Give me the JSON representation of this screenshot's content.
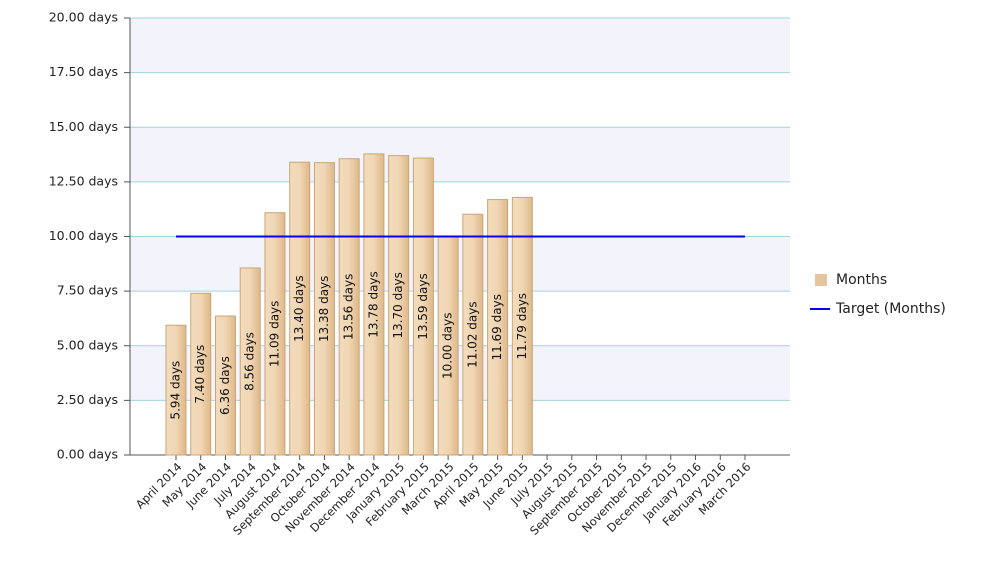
{
  "chart_data": {
    "type": "bar",
    "categories": [
      "April 2014",
      "May 2014",
      "June 2014",
      "July 2014",
      "August 2014",
      "September 2014",
      "October 2014",
      "November 2014",
      "December 2014",
      "January 2015",
      "February 2015",
      "March 2015",
      "April 2015",
      "May 2015",
      "June 2015",
      "July 2015",
      "August 2015",
      "September 2015",
      "October 2015",
      "November 2015",
      "December 2015",
      "January 2016",
      "February 2016",
      "March 2016"
    ],
    "series": [
      {
        "name": "Months",
        "color": "#e6c59c",
        "values": [
          5.94,
          7.4,
          6.36,
          8.56,
          11.09,
          13.4,
          13.38,
          13.56,
          13.78,
          13.7,
          13.59,
          10.0,
          11.02,
          11.69,
          11.79,
          null,
          null,
          null,
          null,
          null,
          null,
          null,
          null,
          null
        ],
        "value_labels": [
          "5.94 days",
          "7.40 days",
          "6.36 days",
          "8.56 days",
          "11.09 days",
          "13.40 days",
          "13.38 days",
          "13.56 days",
          "13.78 days",
          "13.70 days",
          "13.59 days",
          "10.00 days",
          "11.02 days",
          "11.69 days",
          "11.79 days",
          null,
          null,
          null,
          null,
          null,
          null,
          null,
          null,
          null
        ]
      },
      {
        "name": "Target (Months)",
        "color": "#0000ff",
        "line": true,
        "values": [
          10,
          10,
          10,
          10,
          10,
          10,
          10,
          10,
          10,
          10,
          10,
          10,
          10,
          10,
          10,
          10,
          10,
          10,
          10,
          10,
          10,
          10,
          10,
          10
        ]
      }
    ],
    "ylim": [
      0,
      20
    ],
    "yticks": [
      {
        "value": 0,
        "label": "0.00 days"
      },
      {
        "value": 2.5,
        "label": "2.50 days"
      },
      {
        "value": 5,
        "label": "5.00 days"
      },
      {
        "value": 7.5,
        "label": "7.50 days"
      },
      {
        "value": 10,
        "label": "10.00 days"
      },
      {
        "value": 12.5,
        "label": "12.50 days"
      },
      {
        "value": 15,
        "label": "15.00 days"
      },
      {
        "value": 17.5,
        "label": "17.50 days"
      },
      {
        "value": 20,
        "label": "20.00 days"
      }
    ],
    "grid": true,
    "legend": "right"
  }
}
